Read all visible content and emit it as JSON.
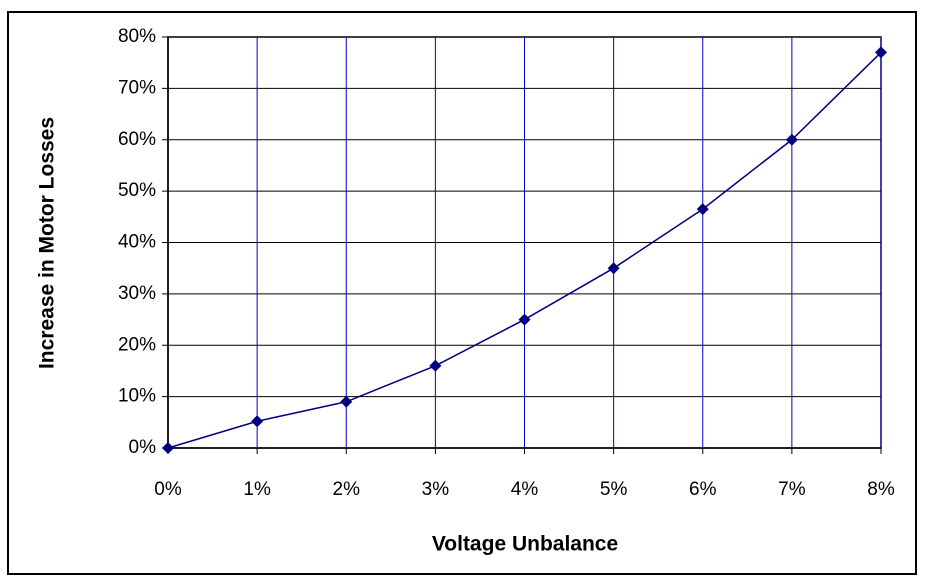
{
  "chart_data": {
    "type": "line",
    "xlabel": "Voltage Unbalance",
    "ylabel": "Increase in Motor Losses",
    "x": [
      0,
      1,
      2,
      3,
      4,
      5,
      6,
      7,
      8
    ],
    "series": [
      {
        "name": "Increase in Motor Losses",
        "color": "#000080",
        "values": [
          0,
          5.2,
          9,
          16,
          25,
          35,
          46.5,
          60,
          77
        ]
      }
    ],
    "xlim": [
      0,
      8
    ],
    "xticks": [
      {
        "value": 0,
        "label": "0%"
      },
      {
        "value": 1,
        "label": "1%"
      },
      {
        "value": 2,
        "label": "2%"
      },
      {
        "value": 3,
        "label": "3%"
      },
      {
        "value": 4,
        "label": "4%"
      },
      {
        "value": 5,
        "label": "5%"
      },
      {
        "value": 6,
        "label": "6%"
      },
      {
        "value": 7,
        "label": "7%"
      },
      {
        "value": 8,
        "label": "8%"
      }
    ],
    "ylim": [
      0,
      80
    ],
    "yticks": [
      {
        "value": 0,
        "label": "0%"
      },
      {
        "value": 10,
        "label": "10%"
      },
      {
        "value": 20,
        "label": "20%"
      },
      {
        "value": 30,
        "label": "30%"
      },
      {
        "value": 40,
        "label": "40%"
      },
      {
        "value": 50,
        "label": "50%"
      },
      {
        "value": 60,
        "label": "60%"
      },
      {
        "value": 70,
        "label": "70%"
      },
      {
        "value": 80,
        "label": "80%"
      }
    ],
    "grid": true
  }
}
